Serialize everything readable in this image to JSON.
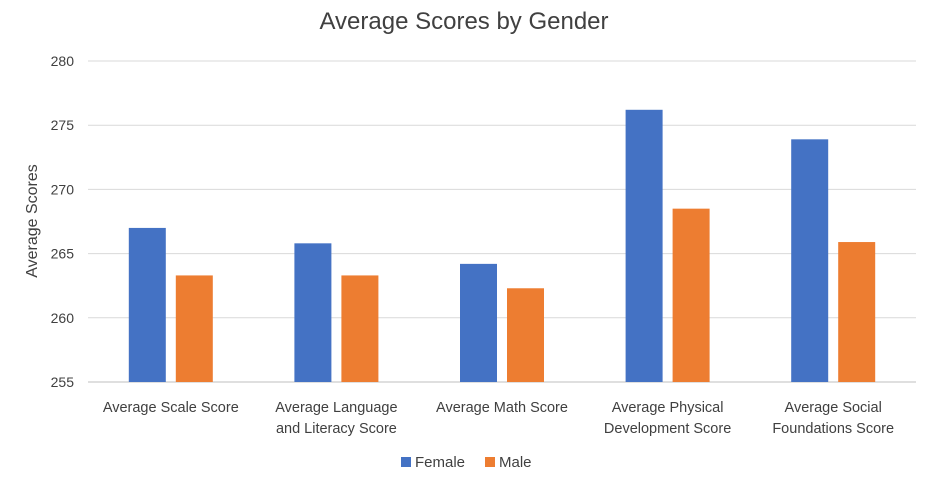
{
  "chart_data": {
    "type": "bar",
    "title": "Average Scores by Gender",
    "xlabel": "",
    "ylabel": "Average Scores",
    "ylim": [
      255,
      280
    ],
    "yticks": [
      255,
      260,
      265,
      270,
      275,
      280
    ],
    "categories": [
      [
        "Average Scale Score"
      ],
      [
        "Average Language",
        "and Literacy Score"
      ],
      [
        "Average Math Score"
      ],
      [
        "Average Physical",
        "Development Score"
      ],
      [
        "Average Social",
        "Foundations Score"
      ]
    ],
    "series": [
      {
        "name": "Female",
        "color": "#4472C4",
        "values": [
          267.0,
          265.8,
          264.2,
          276.2,
          273.9
        ]
      },
      {
        "name": "Male",
        "color": "#ED7D31",
        "values": [
          263.3,
          263.3,
          262.3,
          268.5,
          265.9
        ]
      }
    ],
    "grid": true,
    "legend": "bottom"
  }
}
